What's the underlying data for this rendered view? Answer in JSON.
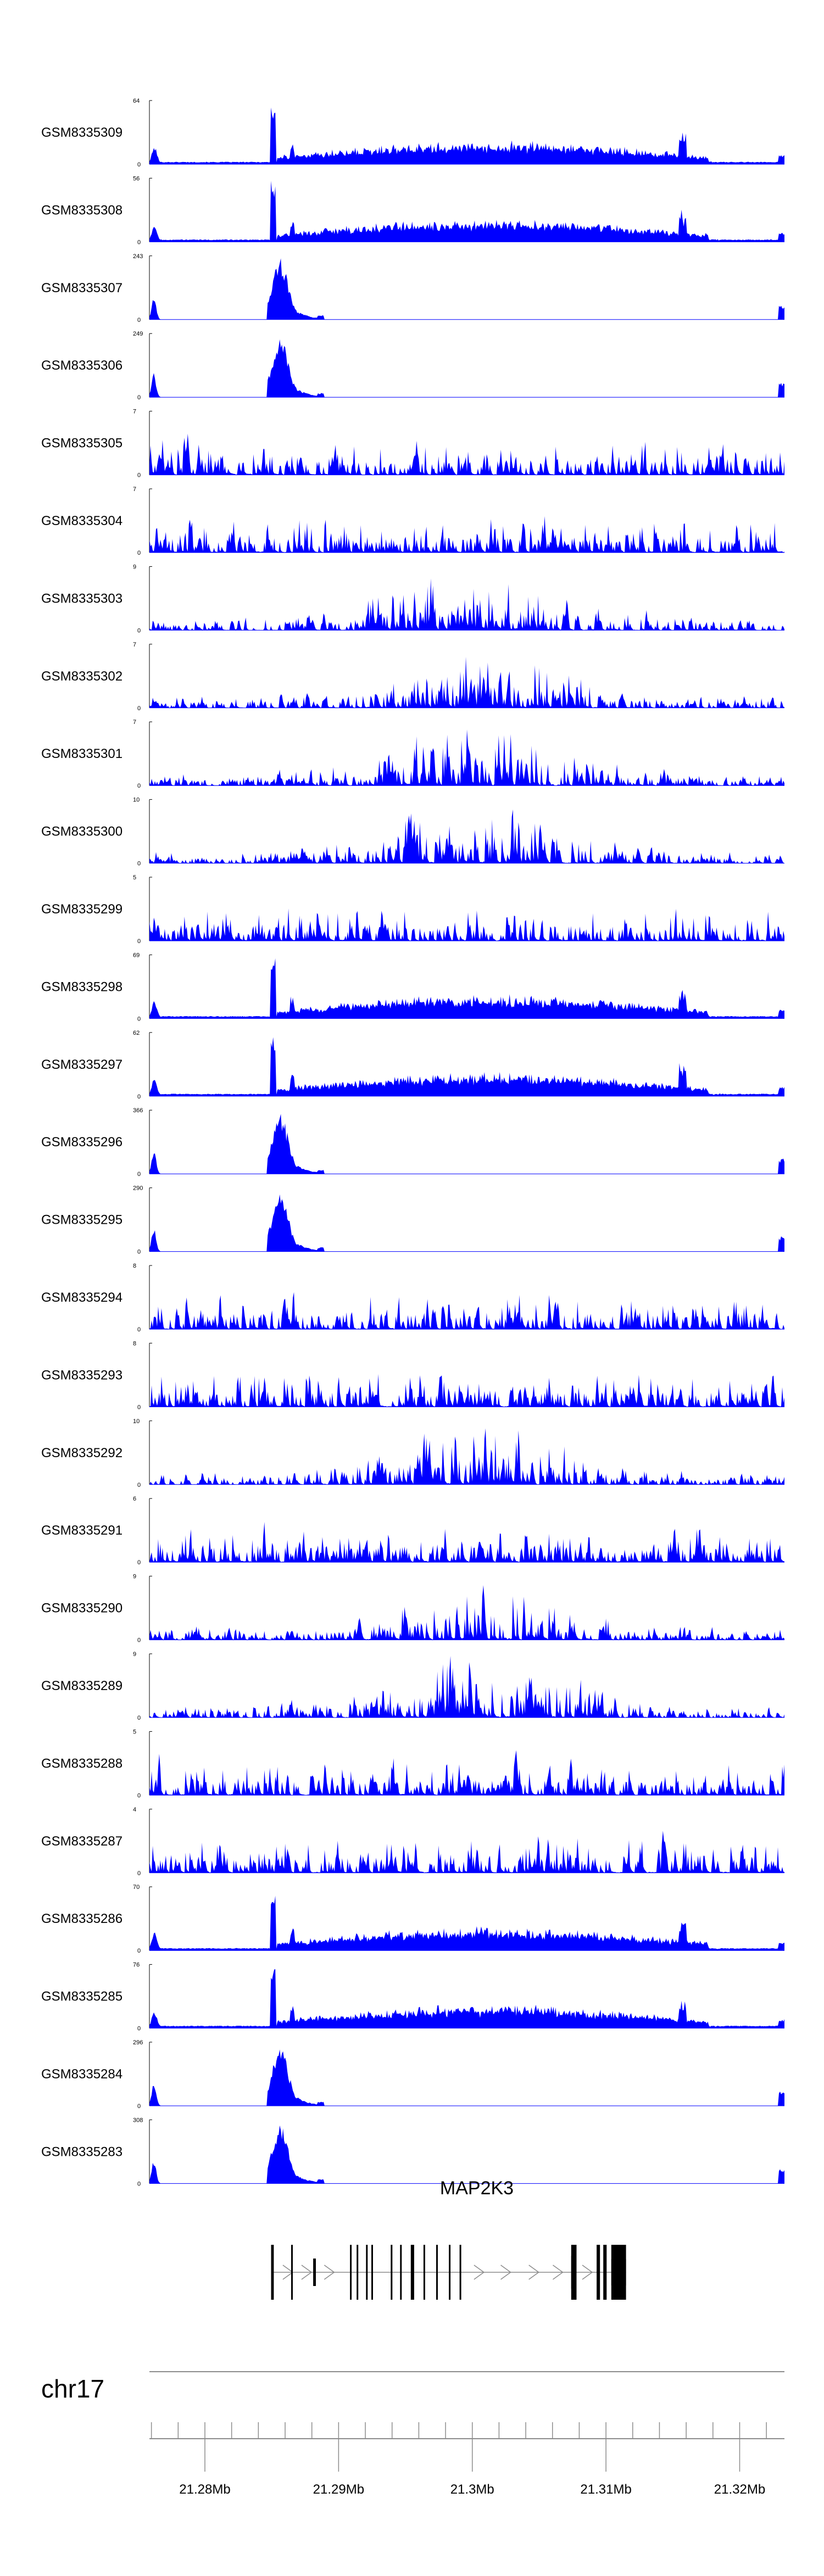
{
  "chart_data": {
    "type": "area",
    "title": "",
    "fill_color": "#0000FF",
    "tracks": [
      {
        "name": "GSM8335309",
        "max": "64",
        "min": "0",
        "profile": "broad_tail"
      },
      {
        "name": "GSM8335308",
        "max": "56",
        "min": "0",
        "profile": "broad_tail"
      },
      {
        "name": "GSM8335307",
        "max": "243",
        "min": "0",
        "profile": "promoter"
      },
      {
        "name": "GSM8335306",
        "max": "249",
        "min": "0",
        "profile": "promoter"
      },
      {
        "name": "GSM8335305",
        "max": "7",
        "min": "0",
        "profile": "noise"
      },
      {
        "name": "GSM8335304",
        "max": "7",
        "min": "0",
        "profile": "noise"
      },
      {
        "name": "GSM8335303",
        "max": "9",
        "min": "0",
        "profile": "noise_mid"
      },
      {
        "name": "GSM8335302",
        "max": "7",
        "min": "0",
        "profile": "noise_mid"
      },
      {
        "name": "GSM8335301",
        "max": "7",
        "min": "0",
        "profile": "noise_mid"
      },
      {
        "name": "GSM8335300",
        "max": "10",
        "min": "0",
        "profile": "noise_mid"
      },
      {
        "name": "GSM8335299",
        "max": "5",
        "min": "0",
        "profile": "noise"
      },
      {
        "name": "GSM8335298",
        "max": "69",
        "min": "0",
        "profile": "broad_tail"
      },
      {
        "name": "GSM8335297",
        "max": "62",
        "min": "0",
        "profile": "broad_tail"
      },
      {
        "name": "GSM8335296",
        "max": "366",
        "min": "0",
        "profile": "promoter"
      },
      {
        "name": "GSM8335295",
        "max": "290",
        "min": "0",
        "profile": "promoter"
      },
      {
        "name": "GSM8335294",
        "max": "8",
        "min": "0",
        "profile": "noise"
      },
      {
        "name": "GSM8335293",
        "max": "8",
        "min": "0",
        "profile": "noise"
      },
      {
        "name": "GSM8335292",
        "max": "10",
        "min": "0",
        "profile": "noise_mid"
      },
      {
        "name": "GSM8335291",
        "max": "6",
        "min": "0",
        "profile": "noise"
      },
      {
        "name": "GSM8335290",
        "max": "9",
        "min": "0",
        "profile": "noise_mid"
      },
      {
        "name": "GSM8335289",
        "max": "9",
        "min": "0",
        "profile": "noise_mid"
      },
      {
        "name": "GSM8335288",
        "max": "5",
        "min": "0",
        "profile": "noise"
      },
      {
        "name": "GSM8335287",
        "max": "4",
        "min": "0",
        "profile": "noise"
      },
      {
        "name": "GSM8335286",
        "max": "70",
        "min": "0",
        "profile": "broad_tail"
      },
      {
        "name": "GSM8335285",
        "max": "76",
        "min": "0",
        "profile": "broad_tail"
      },
      {
        "name": "GSM8335284",
        "max": "296",
        "min": "0",
        "profile": "promoter"
      },
      {
        "name": "GSM8335283",
        "max": "308",
        "min": "0",
        "profile": "promoter"
      }
    ],
    "gene": {
      "name": "MAP2K3",
      "strand": "+",
      "exons": [
        {
          "start": 21284.95,
          "end": 21285.15,
          "tall": true
        },
        {
          "start": 21286.45,
          "end": 21286.55,
          "tall": true
        },
        {
          "start": 21288.1,
          "end": 21288.3,
          "tall": false
        },
        {
          "start": 21290.85,
          "end": 21290.95,
          "tall": true
        },
        {
          "start": 21291.35,
          "end": 21291.45,
          "tall": true
        },
        {
          "start": 21292.05,
          "end": 21292.15,
          "tall": true
        },
        {
          "start": 21292.45,
          "end": 21292.55,
          "tall": true
        },
        {
          "start": 21293.9,
          "end": 21294.0,
          "tall": true
        },
        {
          "start": 21294.6,
          "end": 21294.7,
          "tall": true
        },
        {
          "start": 21295.4,
          "end": 21295.65,
          "tall": true
        },
        {
          "start": 21296.35,
          "end": 21296.45,
          "tall": true
        },
        {
          "start": 21297.3,
          "end": 21297.4,
          "tall": true
        },
        {
          "start": 21298.25,
          "end": 21298.35,
          "tall": true
        },
        {
          "start": 21299.05,
          "end": 21299.15,
          "tall": true
        },
        {
          "start": 21307.4,
          "end": 21307.8,
          "tall": true
        },
        {
          "start": 21309.3,
          "end": 21309.55,
          "tall": true
        },
        {
          "start": 21309.8,
          "end": 21310.05,
          "tall": true
        },
        {
          "start": 21310.4,
          "end": 21311.5,
          "tall": true
        }
      ],
      "chevrons": [
        21286.2,
        21287.6,
        21289.3,
        21300.5,
        21302.5,
        21304.6,
        21306.4,
        21308.6
      ]
    },
    "chromosome": "chr17",
    "x_axis": {
      "xlim": [
        21275.85,
        21323.35
      ],
      "unit": "kb",
      "major_ticks": [
        21280,
        21290,
        21300,
        21310,
        21320
      ],
      "major_tick_labels": [
        "21.28Mb",
        "21.29Mb",
        "21.3Mb",
        "21.31Mb",
        "21.32Mb"
      ],
      "minor_step": 2
    },
    "grid": false,
    "legend": "none"
  }
}
